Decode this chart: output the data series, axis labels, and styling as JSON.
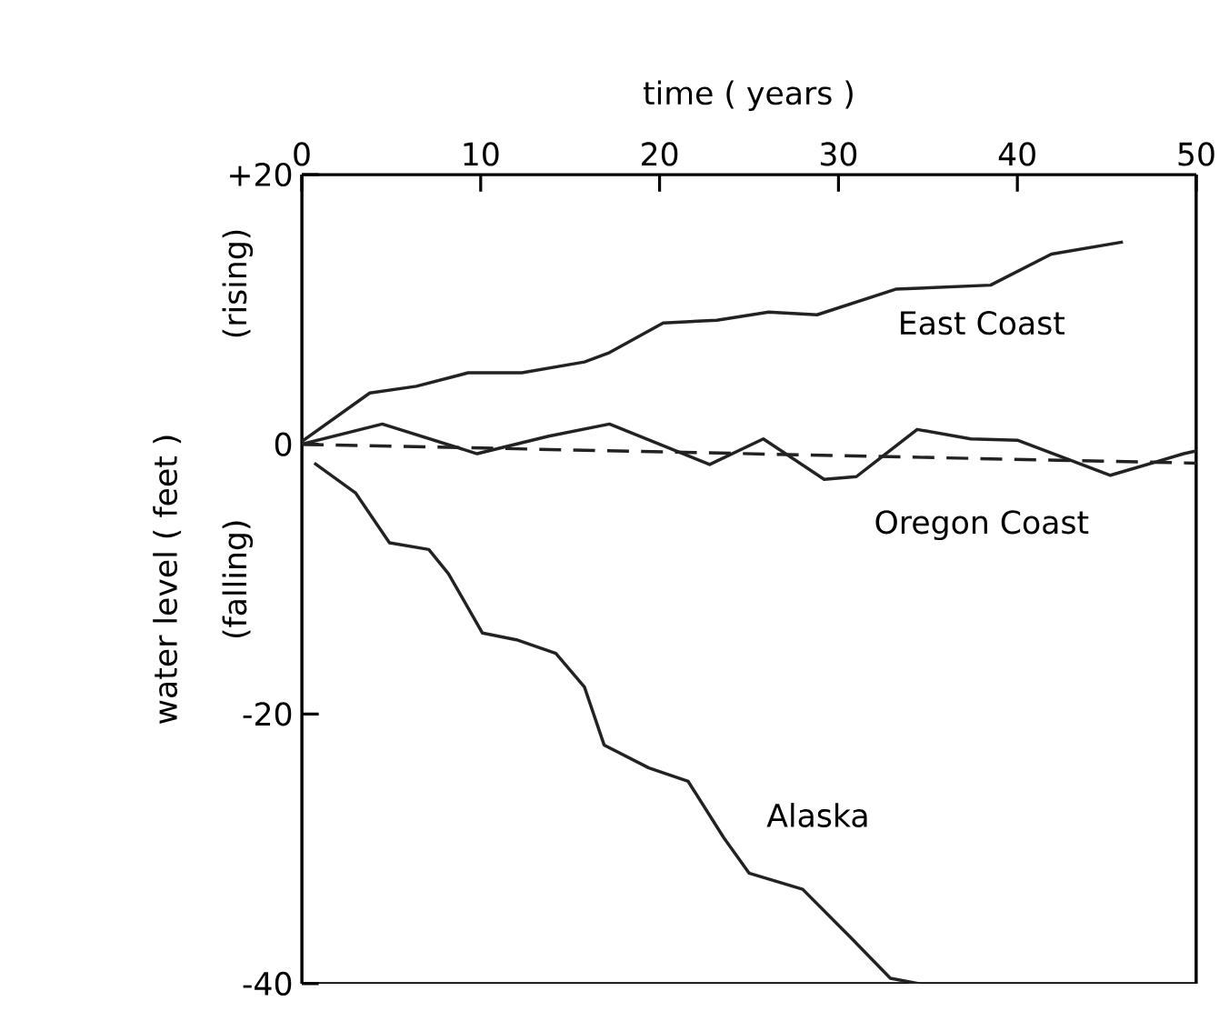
{
  "chart_data": {
    "type": "line",
    "xlabel": "time ( years )",
    "ylabel": "water level ( feet )",
    "annotations": [
      "(rising)",
      "(falling)"
    ],
    "xlim": [
      0,
      50
    ],
    "xticks": [
      0,
      10,
      20,
      30,
      40,
      50
    ],
    "ylim": [
      -40,
      20
    ],
    "yticks": [
      {
        "value": 20,
        "label": "+20"
      },
      0,
      -20,
      -40
    ],
    "legend": false,
    "grid": false,
    "marker": "none",
    "series": [
      {
        "name": "East Coast",
        "color": "#222222",
        "line_style": "solid",
        "x": [
          0,
          3.8,
          6.4,
          9.3,
          12.3,
          15.8,
          17.2,
          20.2,
          23.2,
          26.1,
          28.8,
          33.2,
          38.5,
          41.9,
          45.9
        ],
        "values": [
          0.2,
          3.8,
          4.3,
          5.3,
          5.3,
          6.1,
          6.8,
          9,
          9.2,
          9.8,
          9.6,
          11.5,
          11.8,
          14.1,
          15
        ]
      },
      {
        "name": "Oregon Coast",
        "color": "#222222",
        "line_style": "solid",
        "x": [
          0,
          4.5,
          9.8,
          13.8,
          17.2,
          22.8,
          25.8,
          29.2,
          31,
          34.4,
          37.4,
          40,
          45.2,
          49.3,
          50
        ],
        "values": [
          0,
          1.5,
          -0.7,
          0.6,
          1.5,
          -1.5,
          0.4,
          -2.6,
          -2.4,
          1.1,
          0.4,
          0.3,
          -2.3,
          -0.7,
          -0.5
        ]
      },
      {
        "color": "#222222",
        "line_style": "dashed",
        "x": [
          0,
          50
        ],
        "values": [
          0,
          -1.4
        ]
      },
      {
        "name": "Alaska",
        "color": "#222222",
        "line_style": "solid",
        "x": [
          0.7,
          3,
          4.9,
          7.1,
          8.2,
          10.1,
          12,
          14.2,
          15.8,
          16.9,
          19.4,
          21.6,
          23.6,
          25,
          28,
          30.7,
          32.9,
          34.5
        ],
        "values": [
          -1.4,
          -3.6,
          -7.3,
          -7.8,
          -9.6,
          -14,
          -14.5,
          -15.5,
          -18,
          -22.3,
          -24,
          -25,
          -29.2,
          -31.8,
          -33,
          -36.6,
          -39.6,
          -40
        ]
      }
    ]
  }
}
